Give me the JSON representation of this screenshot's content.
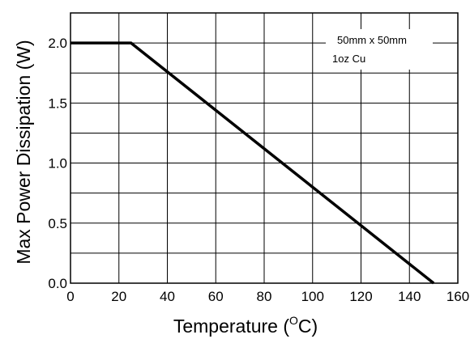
{
  "chart_data": {
    "type": "line",
    "xlabel_main": "Temperature (",
    "xlabel_sup": "O",
    "xlabel_end": "C)",
    "ylabel": "Max Power Dissipation (W)",
    "xlim": [
      0,
      160
    ],
    "ylim": [
      0,
      2.25
    ],
    "grid": true,
    "xticks": [
      "0",
      "20",
      "40",
      "60",
      "80",
      "100",
      "120",
      "140",
      "160"
    ],
    "yticks": [
      "0.0",
      "0.5",
      "1.0",
      "1.5",
      "2.0"
    ],
    "annotation": [
      "50mm x 50mm",
      "1oz Cu"
    ],
    "series": [
      {
        "x": [
          0,
          25,
          150
        ],
        "y": [
          2.0,
          2.0,
          0.0
        ],
        "color": "#000000"
      }
    ]
  }
}
